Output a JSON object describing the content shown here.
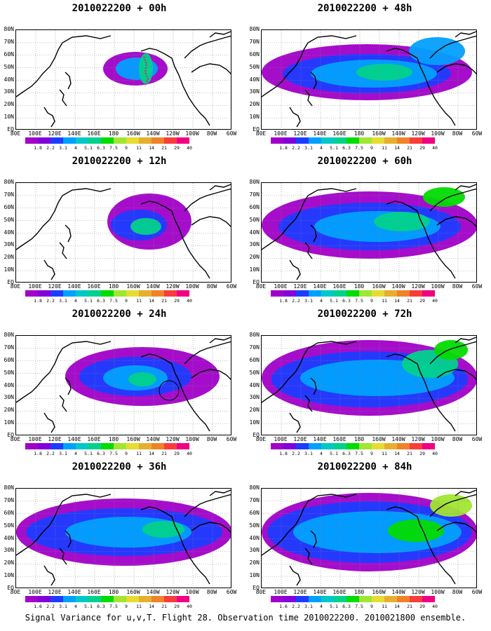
{
  "panels": [
    {
      "title": "2010022200 + 00h",
      "lead": "00h"
    },
    {
      "title": "2010022200 + 48h",
      "lead": "48h"
    },
    {
      "title": "2010022200 + 12h",
      "lead": "12h"
    },
    {
      "title": "2010022200 + 60h",
      "lead": "60h"
    },
    {
      "title": "2010022200 + 24h",
      "lead": "24h"
    },
    {
      "title": "2010022200 + 72h",
      "lead": "72h"
    },
    {
      "title": "2010022200 + 36h",
      "lead": "36h"
    },
    {
      "title": "2010022200 + 84h",
      "lead": "84h"
    }
  ],
  "lat_labels": [
    "80N",
    "70N",
    "60N",
    "50N",
    "40N",
    "30N",
    "20N",
    "10N",
    "EQ"
  ],
  "lon_labels": [
    "80E",
    "100E",
    "120E",
    "140E",
    "160E",
    "180",
    "160W",
    "140W",
    "120W",
    "100W",
    "80W",
    "60W"
  ],
  "colorbar": {
    "colors": [
      "#a000c8",
      "#8200dc",
      "#1e3cff",
      "#00a0ff",
      "#00c8c8",
      "#00d28c",
      "#00dc00",
      "#a0e632",
      "#e6dc32",
      "#e6af2d",
      "#f08228",
      "#fa3c3c",
      "#f00082"
    ],
    "labels": [
      "1.8",
      "2.2",
      "3.1",
      "4",
      "5.1",
      "6.3",
      "7.5",
      "9",
      "11",
      "14",
      "21",
      "29",
      "40"
    ],
    "labels_last_panel": [
      "1.6",
      "2.2",
      "3.1",
      "4",
      "5.1",
      "6.3",
      "7.5",
      "9",
      "11",
      "14",
      "21",
      "29",
      "40"
    ]
  },
  "caption": "Signal Variance for u,v,T. Flight 28. Observation time 2010022200. 2010021800 ensemble."
}
